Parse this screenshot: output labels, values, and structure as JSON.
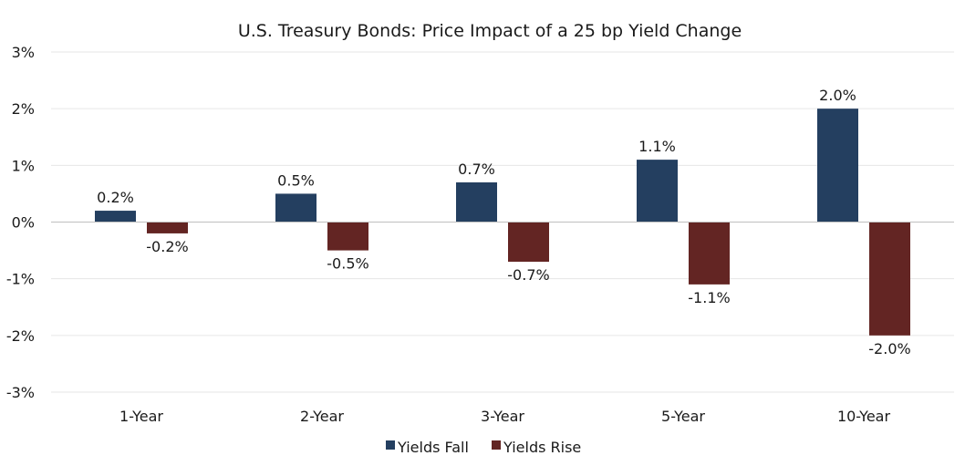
{
  "chart_data": {
    "type": "bar",
    "title": "U.S. Treasury Bonds: Price Impact of a 25 bp Yield Change",
    "xlabel": "",
    "ylabel": "",
    "categories": [
      "1-Year",
      "2-Year",
      "3-Year",
      "5-Year",
      "10-Year"
    ],
    "series": [
      {
        "name": "Yields Fall",
        "color": "#243f60",
        "values": [
          0.2,
          0.5,
          0.7,
          1.1,
          2.0
        ],
        "labels": [
          "0.2%",
          "0.5%",
          "0.7%",
          "1.1%",
          "2.0%"
        ]
      },
      {
        "name": "Yields Rise",
        "color": "#632523",
        "values": [
          -0.2,
          -0.5,
          -0.7,
          -1.1,
          -2.0
        ],
        "labels": [
          "-0.2%",
          "-0.5%",
          "-0.7%",
          "-1.1%",
          "-2.0%"
        ]
      }
    ],
    "ylim": [
      -3,
      3
    ],
    "yticks": [
      3,
      2,
      1,
      0,
      -1,
      -2,
      -3
    ],
    "ytick_labels": [
      "3%",
      "2%",
      "1%",
      "0%",
      "-1%",
      "-2%",
      "-3%"
    ],
    "grid": true,
    "legend_position": "bottom-center"
  }
}
